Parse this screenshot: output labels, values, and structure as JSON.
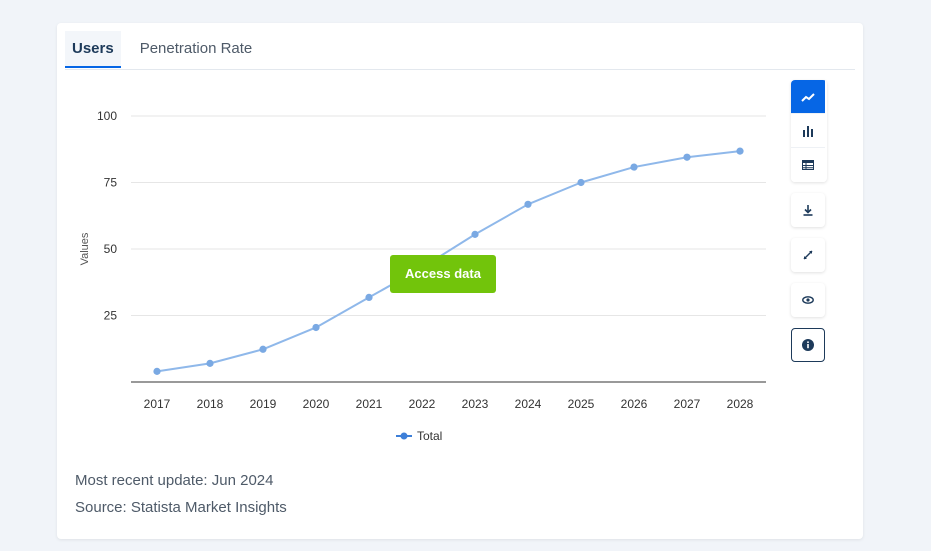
{
  "tabs": [
    {
      "label": "Users",
      "active": true
    },
    {
      "label": "Penetration Rate",
      "active": false
    }
  ],
  "chart_data": {
    "type": "line",
    "x": [
      "2017",
      "2018",
      "2019",
      "2020",
      "2021",
      "2022",
      "2023",
      "2024",
      "2025",
      "2026",
      "2027",
      "2028"
    ],
    "series": [
      {
        "name": "Total",
        "values": [
          4.0,
          7.0,
          12.3,
          20.5,
          31.8,
          43.0,
          55.5,
          66.8,
          75.0,
          80.8,
          84.5,
          86.8
        ],
        "color": "#8fb8ea"
      }
    ],
    "ylabel": "Values",
    "yticks": [
      25,
      50,
      75,
      100
    ],
    "ylim": [
      0,
      100
    ],
    "grid": true,
    "legend": "bottom"
  },
  "access_button": "Access data",
  "toolbar": {
    "buttons": [
      {
        "icon": "line-chart-icon",
        "active": true
      },
      {
        "icon": "bar-chart-icon",
        "active": false
      },
      {
        "icon": "table-icon",
        "active": false
      },
      {
        "icon": "download-icon",
        "active": false
      },
      {
        "icon": "fullscreen-icon",
        "active": false
      },
      {
        "icon": "eye-icon",
        "active": false
      },
      {
        "icon": "info-icon",
        "active": false
      }
    ]
  },
  "update_text": "Most recent update: Jun 2024",
  "source_text": "Source: Statista Market Insights"
}
